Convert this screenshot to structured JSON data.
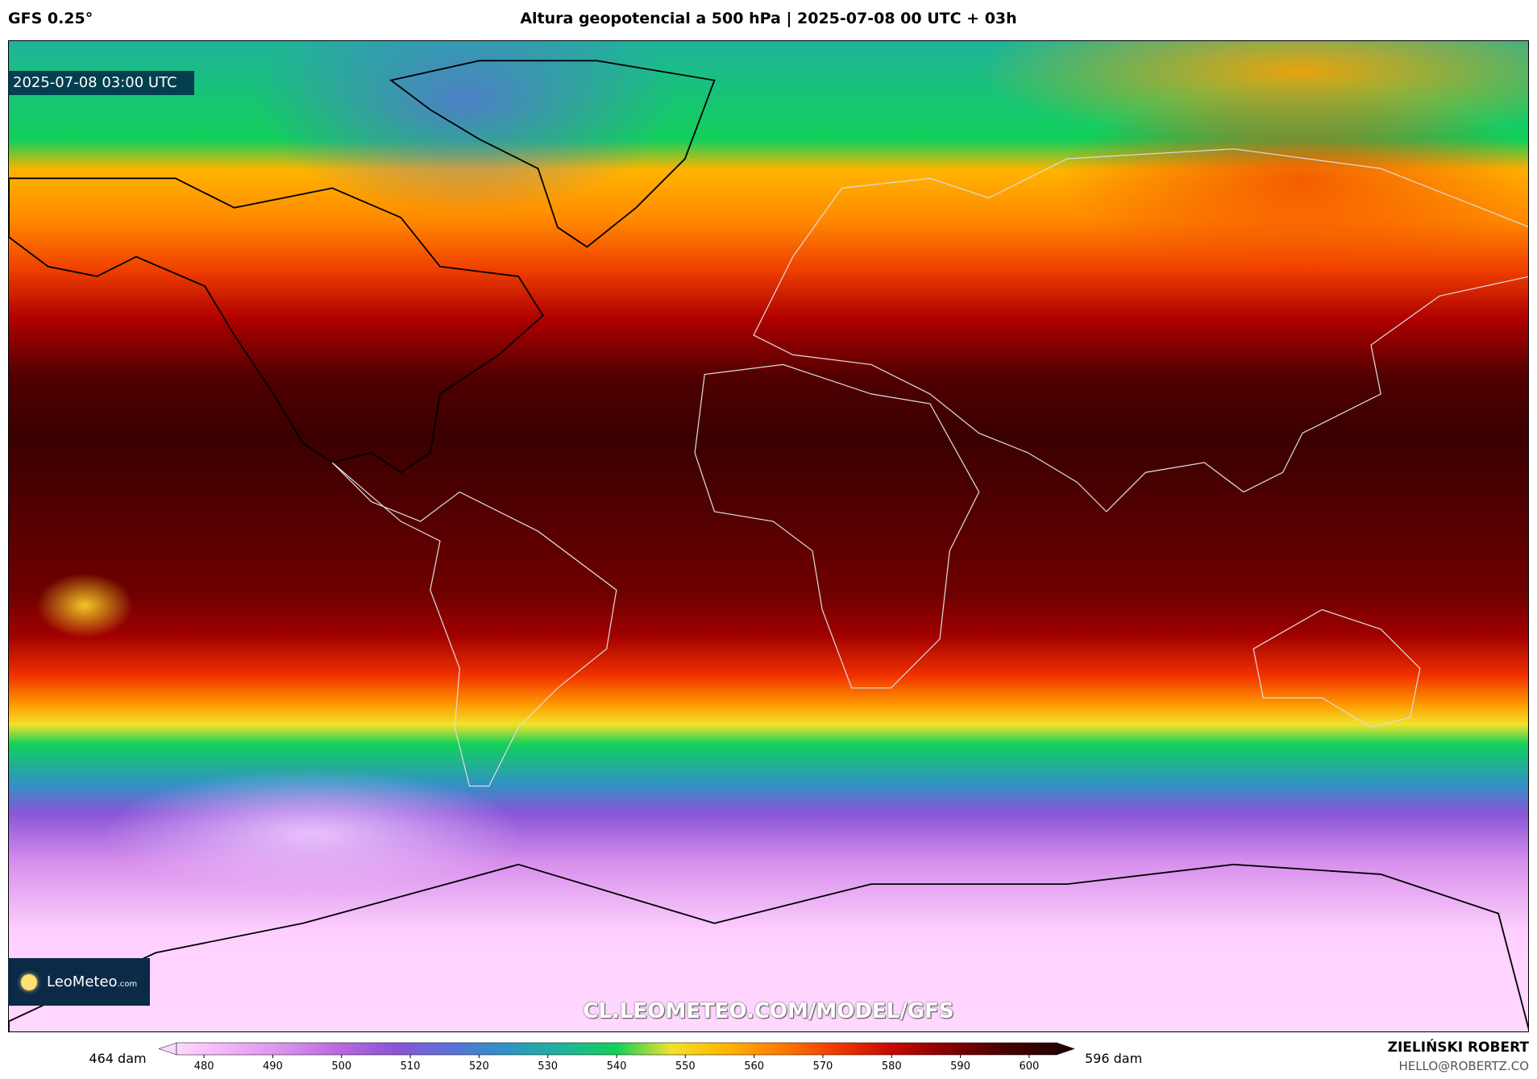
{
  "header": {
    "model": "GFS 0.25°",
    "title": "Altura geopotencial a 500 hPa | 2025-07-08 00 UTC + 03h"
  },
  "map": {
    "valid_time": "2025-07-08 03:00 UTC",
    "watermark": "CL.LEOMETEO.COM/MODEL/GFS",
    "logo": {
      "name": "LeoMeteo",
      "suffix": ".com"
    }
  },
  "colorbar": {
    "min_label": "464 dam",
    "max_label": "596 dam",
    "lim": [
      476,
      604
    ],
    "ticks": [
      480,
      490,
      500,
      510,
      520,
      530,
      540,
      550,
      560,
      570,
      580,
      590,
      600
    ],
    "colors": [
      "#ffd8ff",
      "#f0b0f4",
      "#d890ec",
      "#b866e0",
      "#8a55d8",
      "#5a72d8",
      "#2f93c4",
      "#1fb49a",
      "#12d05a",
      "#f2e22a",
      "#ffb400",
      "#ff7a00",
      "#f23800",
      "#c80800",
      "#860000",
      "#4a0000",
      "#250000"
    ]
  },
  "footer": {
    "author": "ZIELIŃSKI ROBERT",
    "email": "HELLO@ROBERTZ.CO"
  }
}
